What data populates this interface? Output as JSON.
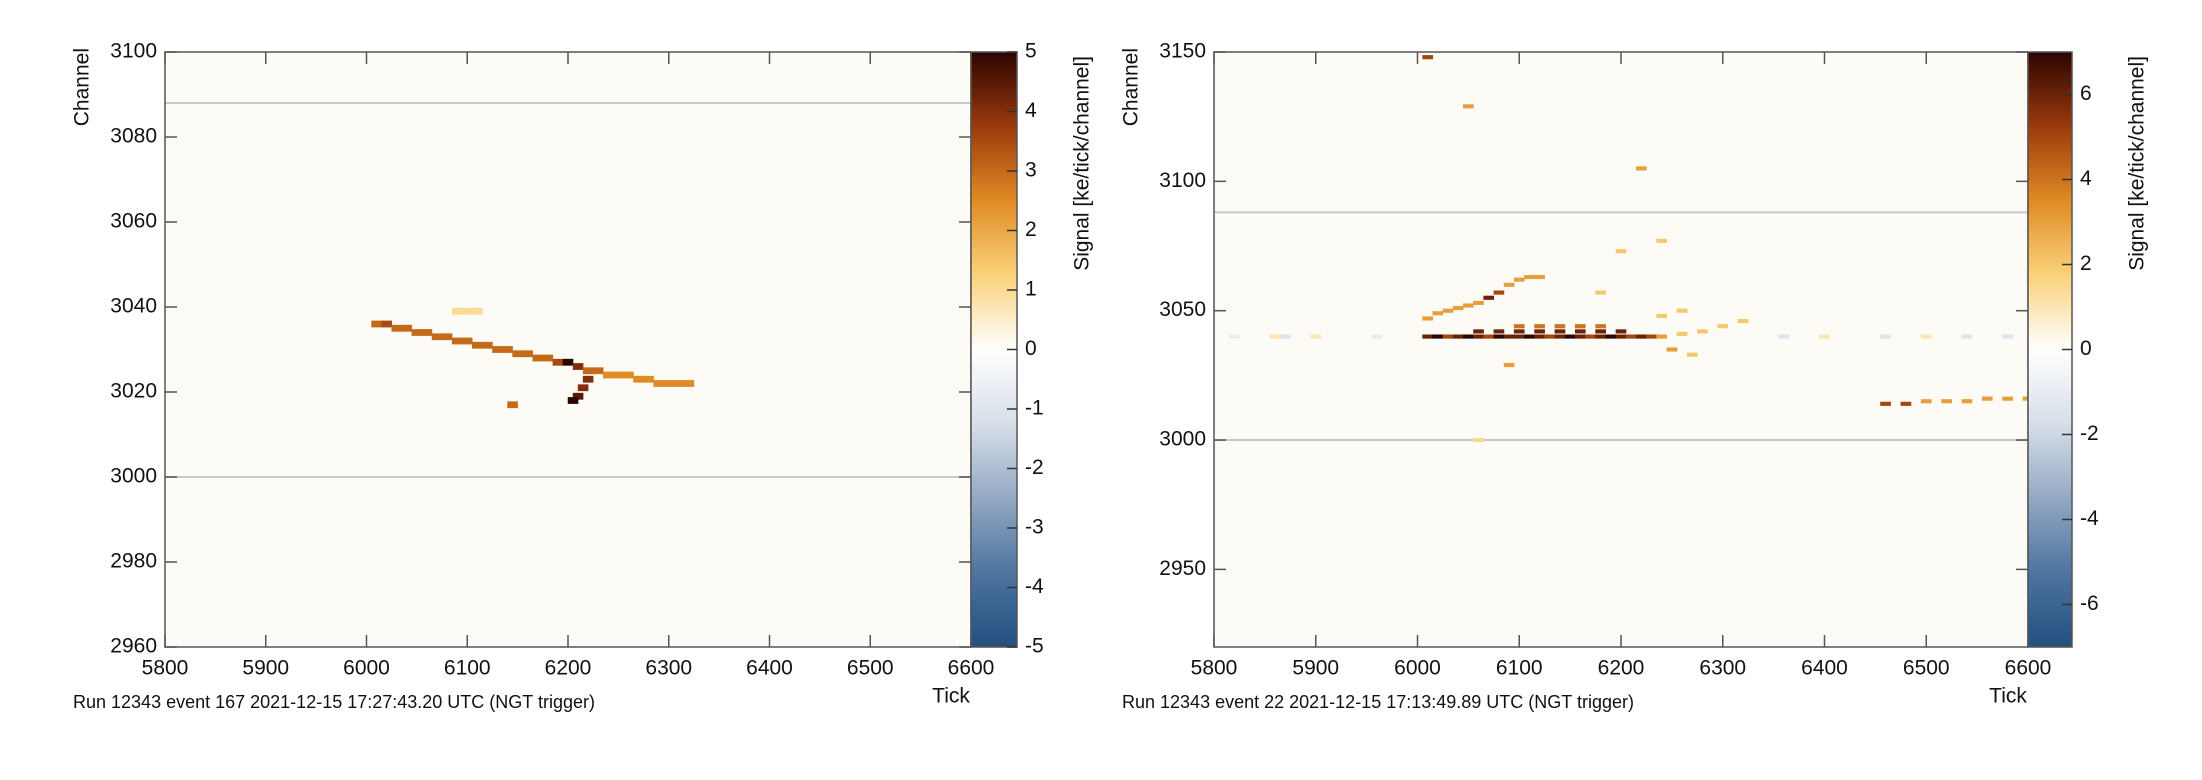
{
  "chart_data": [
    {
      "type": "heatmap",
      "x_label": "Tick",
      "y_label": "Channel",
      "colorbar_label": "Signal [ke/tick/channel]",
      "footer": "Run 12343 event 167 2021-12-15 17:27:43.20 UTC (NGT trigger)",
      "xlim": [
        5800,
        6600
      ],
      "ylim": [
        2960,
        3100
      ],
      "xticks": [
        5800,
        5900,
        6000,
        6100,
        6200,
        6300,
        6400,
        6500,
        6600
      ],
      "yticks": [
        2960,
        2980,
        3000,
        3020,
        3040,
        3060,
        3080,
        3100
      ],
      "clim": [
        -5,
        5
      ],
      "cticks": [
        -5,
        -4,
        -3,
        -2,
        -1,
        0,
        1,
        2,
        3,
        4,
        5
      ],
      "colormap": [
        "#244f7f",
        "#4e74a0",
        "#93a9c3",
        "#d7dee7",
        "#ffffff",
        "#f9d27a",
        "#e08b24",
        "#9a3a0c",
        "#2b0500"
      ],
      "reference_lines": [
        3088,
        3000
      ],
      "x": [
        6010,
        6020,
        6030,
        6040,
        6050,
        6060,
        6070,
        6080,
        6090,
        6100,
        6110,
        6120,
        6130,
        6140,
        6150,
        6160,
        6170,
        6180,
        6190,
        6200,
        6210,
        6220,
        6230,
        6240,
        6250,
        6260,
        6270,
        6280,
        6290,
        6300,
        6310,
        6320,
        6220,
        6215,
        6210,
        6205,
        6145,
        6090,
        6100,
        6110
      ],
      "y": [
        3036,
        3036,
        3035,
        3035,
        3034,
        3034,
        3033,
        3033,
        3032,
        3032,
        3031,
        3031,
        3030,
        3030,
        3029,
        3029,
        3028,
        3028,
        3027,
        3027,
        3026,
        3025,
        3025,
        3024,
        3024,
        3024,
        3023,
        3023,
        3022,
        3022,
        3022,
        3022,
        3023,
        3021,
        3019,
        3018,
        3017,
        3039,
        3039,
        3039
      ],
      "values": [
        3,
        3.5,
        3,
        3,
        3,
        3,
        3,
        3,
        3,
        3,
        3,
        3,
        3,
        3,
        3,
        3,
        3,
        3,
        3.5,
        5,
        4,
        3,
        3,
        2.5,
        2.5,
        2.5,
        2.5,
        2.5,
        2.5,
        2.5,
        2.5,
        2.5,
        4,
        4,
        4.5,
        5,
        3,
        1,
        1,
        1
      ]
    },
    {
      "type": "heatmap",
      "x_label": "Tick",
      "y_label": "Channel",
      "colorbar_label": "Signal [ke/tick/channel]",
      "footer": "Run 12343 event 22 2021-12-15 17:13:49.89 UTC (NGT trigger)",
      "xlim": [
        5800,
        6600
      ],
      "ylim": [
        2920,
        3150
      ],
      "xticks": [
        5800,
        5900,
        6000,
        6100,
        6200,
        6300,
        6400,
        6500,
        6600
      ],
      "yticks": [
        2950,
        3000,
        3050,
        3100,
        3150
      ],
      "clim": [
        -7,
        7
      ],
      "cticks": [
        -6,
        -4,
        -2,
        0,
        2,
        4,
        6
      ],
      "colormap": [
        "#244f7f",
        "#4e74a0",
        "#93a9c3",
        "#d7dee7",
        "#ffffff",
        "#f9d27a",
        "#e08b24",
        "#9a3a0c",
        "#2b0500"
      ],
      "reference_lines": [
        3088,
        3000
      ],
      "x": [
        6010,
        6020,
        6030,
        6040,
        6050,
        6060,
        6070,
        6080,
        6090,
        6100,
        6110,
        6120,
        6130,
        6140,
        6150,
        6160,
        6170,
        6180,
        6190,
        6200,
        6210,
        6220,
        6230,
        6060,
        6080,
        6100,
        6120,
        6140,
        6160,
        6180,
        6200,
        6100,
        6120,
        6140,
        6160,
        6180,
        6010,
        6020,
        6030,
        6040,
        6050,
        6060,
        6070,
        6080,
        6090,
        6100,
        6110,
        6120,
        6240,
        6260,
        6280,
        6300,
        6320,
        6250,
        6270,
        6240,
        6260,
        6180,
        6010,
        6050,
        6220,
        6240,
        6200,
        6090,
        6060,
        6460,
        6480,
        6500,
        6520,
        6540,
        6560,
        6580,
        6600,
        5820,
        5860,
        5870,
        5900,
        5960,
        6360,
        6400,
        6460,
        6500,
        6540,
        6580
      ],
      "y": [
        3040,
        3040,
        3040,
        3040,
        3040,
        3040,
        3040,
        3040,
        3040,
        3040,
        3040,
        3040,
        3040,
        3040,
        3040,
        3040,
        3040,
        3040,
        3040,
        3040,
        3040,
        3040,
        3040,
        3042,
        3042,
        3042,
        3042,
        3042,
        3042,
        3042,
        3042,
        3044,
        3044,
        3044,
        3044,
        3044,
        3047,
        3049,
        3050,
        3051,
        3052,
        3053,
        3055,
        3057,
        3060,
        3062,
        3063,
        3063,
        3040,
        3041,
        3042,
        3044,
        3046,
        3035,
        3033,
        3048,
        3050,
        3057,
        3148,
        3129,
        3105,
        3077,
        3073,
        3029,
        3000,
        3014,
        3014,
        3015,
        3015,
        3015,
        3016,
        3016,
        3016,
        3040,
        3040,
        3040,
        3040,
        3040,
        3040,
        3040,
        3040,
        3040,
        3040,
        3040
      ],
      "values": [
        6,
        7,
        5,
        6,
        7,
        6,
        5,
        7,
        6,
        6,
        7,
        6,
        5,
        6,
        7,
        6,
        5,
        6,
        7,
        6,
        5,
        6,
        5,
        6,
        6,
        6,
        6,
        6,
        6,
        6,
        6,
        4,
        4,
        4,
        4,
        4,
        3,
        3,
        3,
        3,
        3,
        3,
        6,
        5,
        3,
        3,
        3,
        3,
        3,
        2,
        2,
        2,
        2,
        3,
        2,
        2,
        2,
        2,
        5,
        3,
        3,
        2,
        2,
        3,
        1.5,
        5,
        5,
        3,
        3,
        3,
        3,
        3,
        3,
        -1,
        1,
        -1.5,
        1,
        -1,
        -1.5,
        1,
        -1.5,
        1,
        -1.5,
        -1.5
      ]
    }
  ]
}
